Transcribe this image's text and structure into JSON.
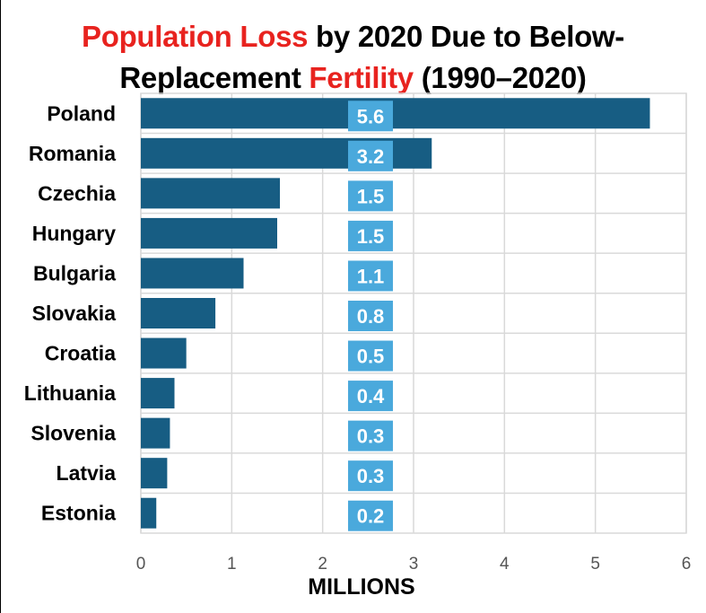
{
  "chart_data": {
    "type": "bar",
    "orientation": "horizontal",
    "title_parts": [
      {
        "text": "Population Loss",
        "highlight": true
      },
      {
        "text": " by 2020 Due to Below-",
        "highlight": false
      },
      {
        "text": "Replacement ",
        "highlight": false
      },
      {
        "text": "Fertility",
        "highlight": true
      },
      {
        "text": " (1990–2020)",
        "highlight": false
      }
    ],
    "categories": [
      "Poland",
      "Romania",
      "Czechia",
      "Hungary",
      "Bulgaria",
      "Slovakia",
      "Croatia",
      "Lithuania",
      "Slovenia",
      "Latvia",
      "Estonia"
    ],
    "values": [
      5.6,
      3.2,
      1.53,
      1.5,
      1.13,
      0.82,
      0.5,
      0.37,
      0.32,
      0.29,
      0.17
    ],
    "data_labels": [
      "5.6",
      "3.2",
      "1.5",
      "1.5",
      "1.1",
      "0.8",
      "0.5",
      "0.4",
      "0.3",
      "0.3",
      "0.2"
    ],
    "xlabel": "MILLIONS",
    "ylabel": "",
    "xlim": [
      0,
      6
    ],
    "x_ticks": [
      0,
      1,
      2,
      3,
      4,
      5,
      6
    ],
    "grid": true,
    "colors": {
      "bar": "#175d83",
      "label_box": "#4aa9dc",
      "title_highlight": "#e8231f",
      "grid": "#d9d9d9"
    }
  }
}
